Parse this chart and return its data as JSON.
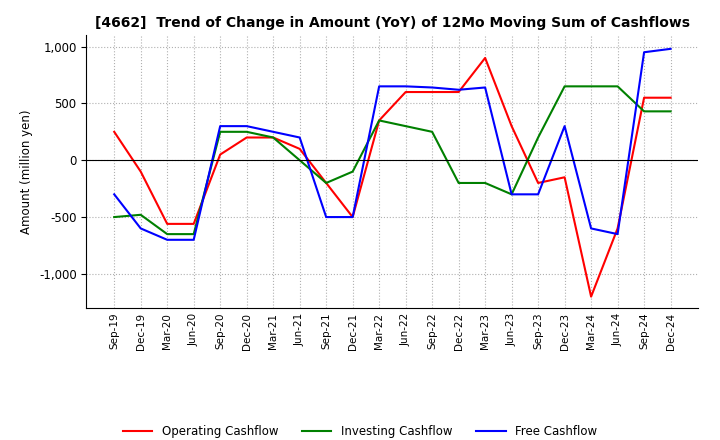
{
  "title": "[4662]  Trend of Change in Amount (YoY) of 12Mo Moving Sum of Cashflows",
  "ylabel": "Amount (million yen)",
  "x_labels": [
    "Sep-19",
    "Dec-19",
    "Mar-20",
    "Jun-20",
    "Sep-20",
    "Dec-20",
    "Mar-21",
    "Jun-21",
    "Sep-21",
    "Dec-21",
    "Mar-22",
    "Jun-22",
    "Sep-22",
    "Dec-22",
    "Mar-23",
    "Jun-23",
    "Sep-23",
    "Dec-23",
    "Mar-24",
    "Jun-24",
    "Sep-24",
    "Dec-24"
  ],
  "operating": [
    250,
    -100,
    -560,
    -560,
    50,
    200,
    200,
    100,
    -200,
    -500,
    350,
    600,
    600,
    600,
    900,
    300,
    -200,
    -150,
    -1200,
    -600,
    550,
    550
  ],
  "investing": [
    -500,
    -480,
    -650,
    -650,
    250,
    250,
    200,
    0,
    -200,
    -100,
    350,
    300,
    250,
    -200,
    -200,
    -300,
    200,
    650,
    650,
    650,
    430,
    430
  ],
  "free": [
    -300,
    -600,
    -700,
    -700,
    300,
    300,
    250,
    200,
    -500,
    -500,
    650,
    650,
    640,
    620,
    640,
    -300,
    -300,
    300,
    -600,
    -650,
    950,
    980
  ],
  "ylim": [
    -1300,
    1100
  ],
  "yticks": [
    -1000,
    -500,
    0,
    500,
    1000
  ],
  "operating_color": "#ff0000",
  "investing_color": "#008000",
  "free_color": "#0000ff",
  "bg_color": "#ffffff",
  "grid_color": "#b0b0b0",
  "grid_style": "dotted"
}
